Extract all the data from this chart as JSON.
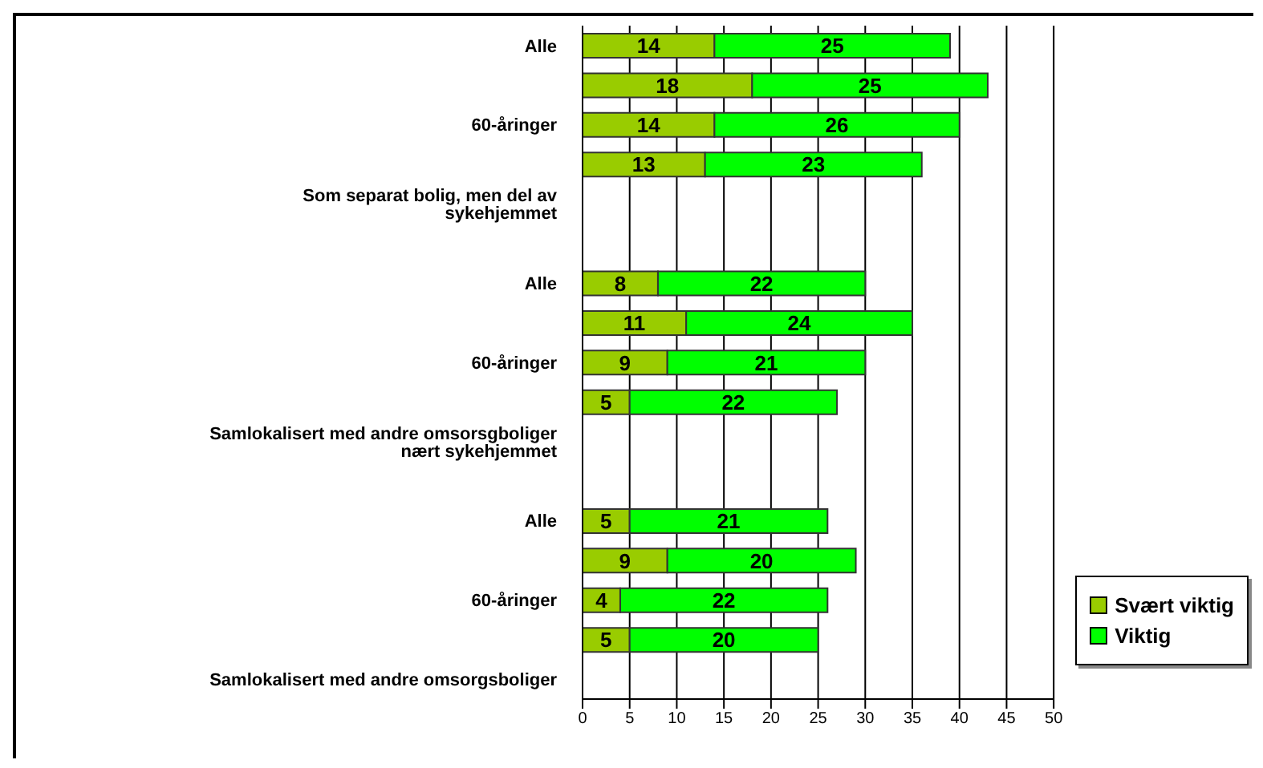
{
  "chart_data": {
    "type": "bar",
    "orientation": "horizontal",
    "stacked": true,
    "data_labels": true,
    "categories": [
      "Alle",
      null,
      "60-åringer",
      null,
      "Som separat bolig, men del av sykehjemmet",
      null,
      "Alle",
      null,
      "60-åringer",
      null,
      "Samlokalisert med andre omsorsgboliger nært sykehjemmet",
      null,
      "Alle",
      null,
      "60-åringer",
      null,
      "Samlokalisert med andre omsorgsboliger"
    ],
    "series": [
      {
        "name": "Svært viktig",
        "color": "#99cc00",
        "values": [
          14,
          18,
          14,
          13,
          null,
          null,
          8,
          11,
          9,
          5,
          null,
          null,
          5,
          9,
          4,
          5,
          null
        ]
      },
      {
        "name": "Viktig",
        "color": "#00ff00",
        "values": [
          25,
          25,
          26,
          23,
          null,
          null,
          22,
          24,
          21,
          22,
          null,
          null,
          21,
          20,
          22,
          20,
          null
        ]
      }
    ],
    "xlim": [
      0,
      50
    ],
    "xticks": [
      0,
      5,
      10,
      15,
      20,
      25,
      30,
      35,
      40,
      45,
      50
    ],
    "grid": "x",
    "legend": "bottom right"
  }
}
